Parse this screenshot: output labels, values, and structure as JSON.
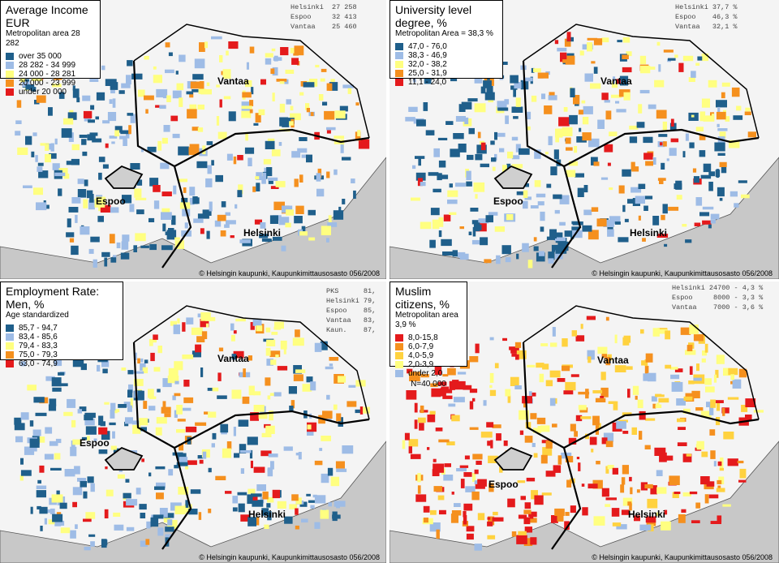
{
  "panels": [
    {
      "title": "Average Income EUR",
      "subtitle": "Metropolitan area 28 282",
      "legend": [
        {
          "label": "over 35 000",
          "color": "#1f5f8b"
        },
        {
          "label": "28 282 - 34 999",
          "color": "#9ebce6"
        },
        {
          "label": "24 000 - 28 281",
          "color": "#ffff80"
        },
        {
          "label": "20 000 - 23 999",
          "color": "#f5901e"
        },
        {
          "label": "under 20 000",
          "color": "#e41a1c"
        }
      ],
      "note": "",
      "stats": [
        "Helsinki  27 258",
        "Espoo     32 413",
        "Vantaa    25 460"
      ],
      "cities": {
        "vantaa": "Vantaa",
        "espoo": "Espoo",
        "helsinki": "Helsinki"
      },
      "copyright": "© Helsingin kaupunki, Kaupunkimittausosasto 056/2008"
    },
    {
      "title": "University level degree, %",
      "subtitle": "Metropolitan Area = 38,3 %",
      "legend": [
        {
          "label": "47,0 - 76,0",
          "color": "#1f5f8b"
        },
        {
          "label": "38,3 - 46,9",
          "color": "#9ebce6"
        },
        {
          "label": "32,0 - 38,2",
          "color": "#ffff80"
        },
        {
          "label": "25,0 - 31,9",
          "color": "#f5901e"
        },
        {
          "label": "11,1 - 24,0",
          "color": "#e41a1c"
        }
      ],
      "note": "",
      "stats": [
        "Helsinki 37,7 %",
        "Espoo    46,3 %",
        "Vantaa   32,1 %"
      ],
      "cities": {
        "vantaa": "Vantaa",
        "espoo": "Espoo",
        "helsinki": "Helsinki"
      },
      "copyright": "© Helsingin kaupunki, Kaupunkimittausosasto 056/2008"
    },
    {
      "title": "Employment Rate: Men, %",
      "subtitle": "Age standardized",
      "legend": [
        {
          "label": "85,7 - 94,7",
          "color": "#1f5f8b"
        },
        {
          "label": "83,4 - 85,6",
          "color": "#9ebce6"
        },
        {
          "label": "79,4 - 83,3",
          "color": "#ffff80"
        },
        {
          "label": "75,0 - 79,3",
          "color": "#f5901e"
        },
        {
          "label": "63,0 - 74,9",
          "color": "#e41a1c"
        }
      ],
      "note": "",
      "stats": [
        "PKS      81,",
        "Helsinki 79,",
        "Espoo    85,",
        "Vantaa   83,",
        "Kaun.    87,"
      ],
      "cities": {
        "vantaa": "Vantaa",
        "espoo": "Espoo",
        "helsinki": "Helsinki"
      },
      "copyright": "© Helsingin kaupunki, Kaupunkimittausosasto 056/2008"
    },
    {
      "title": "Muslim citizens, %",
      "subtitle": "Metropolitan area 3,9 %",
      "legend": [
        {
          "label": "8,0-15,8",
          "color": "#e41a1c"
        },
        {
          "label": "6,0-7,9",
          "color": "#f5901e"
        },
        {
          "label": "4,0-5,9",
          "color": "#ffd23f"
        },
        {
          "label": "2,0-3,9",
          "color": "#ffff80"
        },
        {
          "label": "under 2,0",
          "color": "#9ebce6"
        }
      ],
      "note": "N=40 000",
      "stats": [
        "Helsinki 24700 - 4,3 %",
        "Espoo     8000 - 3,3 %",
        "Vantaa    7000 - 3,6 %"
      ],
      "cities": {
        "vantaa": "Vantaa",
        "espoo": "Espoo",
        "helsinki": "Helsinki"
      },
      "copyright": "© Helsingin kaupunki, Kaupunkimittausosasto 056/2008"
    }
  ]
}
